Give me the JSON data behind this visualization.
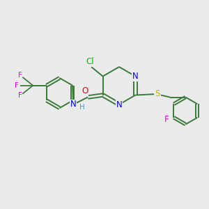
{
  "bg_color": "#ebebeb",
  "bond_color": "#3a7a3a",
  "bond_width": 1.4,
  "atom_colors": {
    "N": "#0000ee",
    "O": "#ee0000",
    "S": "#bbbb00",
    "Cl": "#00bb00",
    "F": "#ee00ee",
    "H": "#5599cc",
    "C": "#3a7a3a"
  },
  "font_size": 8.5,
  "fig_size": [
    3.0,
    3.0
  ],
  "dpi": 100
}
